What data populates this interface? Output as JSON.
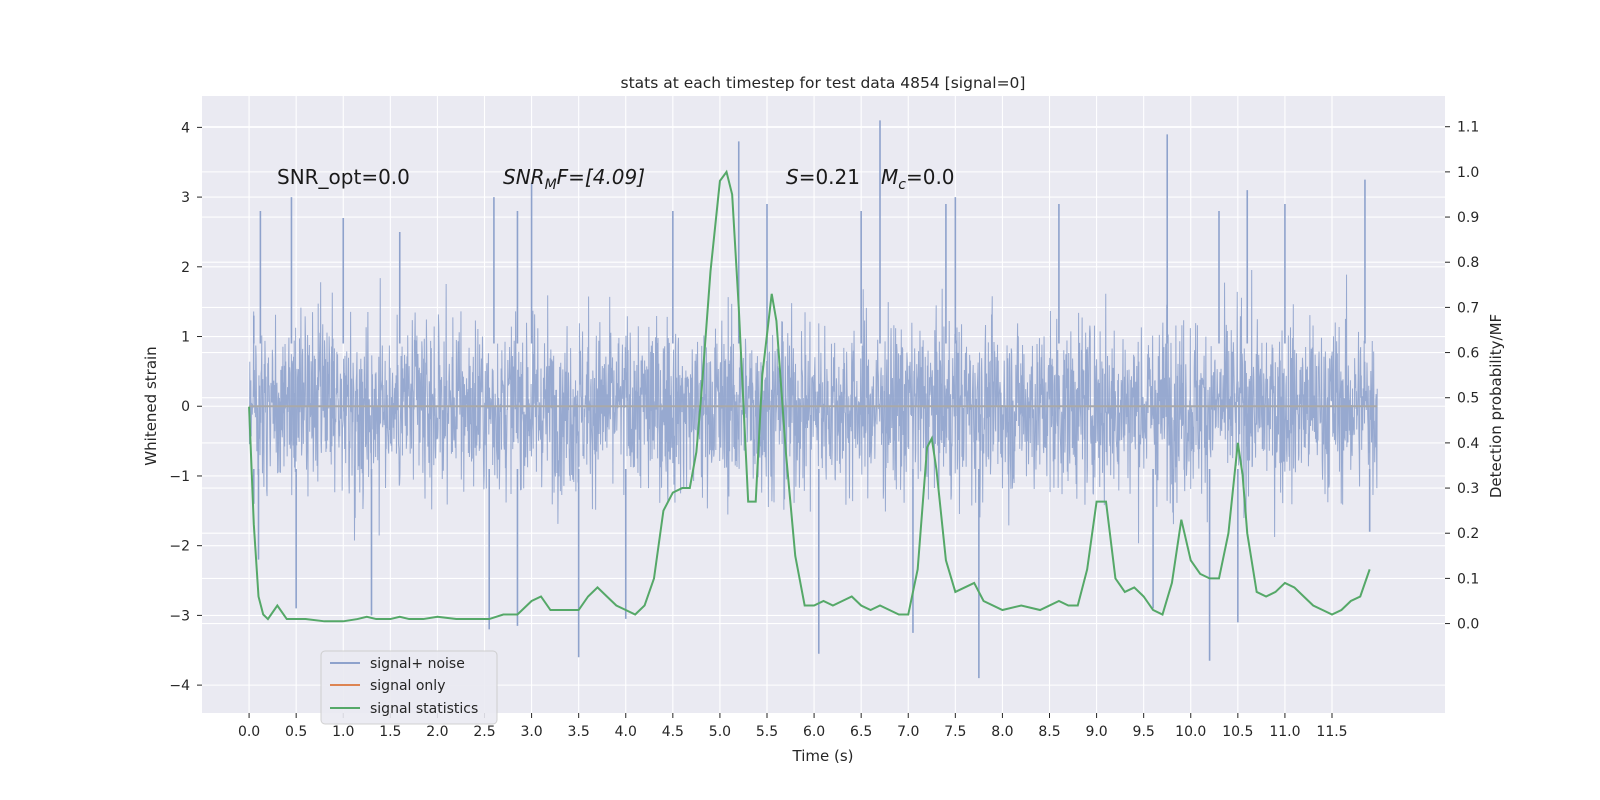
{
  "chart_data": {
    "type": "line",
    "title": "stats at each timestep for test data 4854 [signal=0]",
    "xlabel": "Time (s)",
    "ylabel_left": "Whitened strain",
    "ylabel_right": "Detection probability/MF",
    "xlim": [
      -0.5,
      12.7
    ],
    "ylim_left": [
      -4.4,
      4.45
    ],
    "ylim_right": [
      -0.198,
      1.168
    ],
    "xticks": [
      0.0,
      0.5,
      1.0,
      1.5,
      2.0,
      2.5,
      3.0,
      3.5,
      4.0,
      4.5,
      5.0,
      5.5,
      6.0,
      6.5,
      7.0,
      7.5,
      8.0,
      8.5,
      9.0,
      9.5,
      10.0,
      10.5,
      11.0,
      11.5
    ],
    "xtick_labels": [
      "0.0",
      "0.5",
      "1.0",
      "1.5",
      "2.0",
      "2.5",
      "3.0",
      "3.5",
      "4.0",
      "4.5",
      "5.0",
      "5.5",
      "6.0",
      "6.5",
      "7.0",
      "7.5",
      "8.0",
      "8.5",
      "9.0",
      "9.5",
      "10.0",
      "10.5",
      "11.0",
      "11.5"
    ],
    "yticks_left": [
      -4,
      -3,
      -2,
      -1,
      0,
      1,
      2,
      3,
      4
    ],
    "ytick_labels_left": [
      "−4",
      "−3",
      "−2",
      "−1",
      "0",
      "1",
      "2",
      "3",
      "4"
    ],
    "yticks_right": [
      0.0,
      0.1,
      0.2,
      0.3,
      0.4,
      0.5,
      0.6,
      0.7,
      0.8,
      0.9,
      1.0,
      1.1
    ],
    "ytick_labels_right": [
      "0.0",
      "0.1",
      "0.2",
      "0.3",
      "0.4",
      "0.5",
      "0.6",
      "0.7",
      "0.8",
      "0.9",
      "1.0",
      "1.1"
    ],
    "grid": true,
    "legend_placement": "lower-left",
    "annotations": {
      "snr_opt": "SNR_opt=0.0",
      "snr_mf_sym": "SNR",
      "snr_mf_sub": "M",
      "snr_mf_rest": "F=[4.09]",
      "s_sym": "S",
      "s_val": "=0.21",
      "mc_sym": "M",
      "mc_sub": "c",
      "mc_val": "=0.0"
    },
    "series": [
      {
        "name": "signal+ noise",
        "color": "#8ea2cc",
        "description_values": "dense whitened-strain noise spanning about -1.3 to 1.3 with spikes to about ±3, extremes about 4.1 and -3.9",
        "x_range": [
          0.0,
          11.98
        ],
        "envelope_peaks": [
          [
            0.05,
            1.3
          ],
          [
            0.12,
            2.8
          ],
          [
            0.45,
            3.0
          ],
          [
            1.0,
            2.7
          ],
          [
            1.6,
            2.5
          ],
          [
            2.6,
            3.0
          ],
          [
            2.85,
            2.8
          ],
          [
            3.0,
            3.2
          ],
          [
            4.5,
            2.8
          ],
          [
            5.2,
            3.8
          ],
          [
            5.5,
            2.9
          ],
          [
            6.5,
            2.8
          ],
          [
            6.7,
            4.1
          ],
          [
            7.4,
            2.9
          ],
          [
            7.5,
            3.0
          ],
          [
            8.6,
            2.9
          ],
          [
            9.75,
            3.9
          ],
          [
            10.3,
            2.8
          ],
          [
            10.6,
            3.1
          ],
          [
            11.0,
            2.9
          ],
          [
            11.85,
            3.25
          ]
        ],
        "envelope_troughs": [
          [
            0.05,
            -1.4
          ],
          [
            0.1,
            -2.2
          ],
          [
            0.5,
            -2.9
          ],
          [
            1.3,
            -3.0
          ],
          [
            2.55,
            -3.2
          ],
          [
            2.85,
            -3.15
          ],
          [
            3.5,
            -3.6
          ],
          [
            4.0,
            -3.05
          ],
          [
            6.05,
            -3.55
          ],
          [
            7.05,
            -3.25
          ],
          [
            7.75,
            -3.9
          ],
          [
            9.6,
            -2.9
          ],
          [
            10.2,
            -3.65
          ],
          [
            10.5,
            -3.1
          ],
          [
            11.9,
            -1.8
          ]
        ]
      },
      {
        "name": "signal only",
        "color": "#dd8452",
        "x": [
          0.0,
          11.98
        ],
        "y": [
          0.0,
          0.0
        ]
      },
      {
        "name": "signal statistics",
        "color": "#55a868",
        "axis": "right",
        "x": [
          0.0,
          0.05,
          0.1,
          0.15,
          0.2,
          0.3,
          0.4,
          0.5,
          0.6,
          0.8,
          1.0,
          1.15,
          1.25,
          1.35,
          1.5,
          1.6,
          1.7,
          1.85,
          2.0,
          2.2,
          2.4,
          2.55,
          2.7,
          2.85,
          3.0,
          3.1,
          3.2,
          3.3,
          3.5,
          3.6,
          3.7,
          3.8,
          3.9,
          4.0,
          4.1,
          4.2,
          4.3,
          4.4,
          4.5,
          4.6,
          4.68,
          4.75,
          4.8,
          4.9,
          5.0,
          5.07,
          5.13,
          5.2,
          5.3,
          5.38,
          5.45,
          5.55,
          5.6,
          5.7,
          5.8,
          5.9,
          6.0,
          6.1,
          6.2,
          6.3,
          6.4,
          6.5,
          6.6,
          6.7,
          6.8,
          6.9,
          7.0,
          7.1,
          7.2,
          7.25,
          7.3,
          7.4,
          7.5,
          7.6,
          7.7,
          7.8,
          8.0,
          8.2,
          8.4,
          8.6,
          8.7,
          8.8,
          8.9,
          9.0,
          9.1,
          9.2,
          9.3,
          9.4,
          9.5,
          9.6,
          9.7,
          9.8,
          9.9,
          10.0,
          10.1,
          10.2,
          10.3,
          10.4,
          10.5,
          10.55,
          10.6,
          10.7,
          10.8,
          10.9,
          11.0,
          11.1,
          11.2,
          11.3,
          11.4,
          11.5,
          11.6,
          11.7,
          11.8,
          11.9
        ],
        "y": [
          0.48,
          0.22,
          0.06,
          0.02,
          0.01,
          0.04,
          0.01,
          0.01,
          0.01,
          0.005,
          0.005,
          0.01,
          0.015,
          0.01,
          0.01,
          0.015,
          0.01,
          0.01,
          0.015,
          0.01,
          0.01,
          0.01,
          0.02,
          0.02,
          0.05,
          0.06,
          0.03,
          0.03,
          0.03,
          0.06,
          0.08,
          0.06,
          0.04,
          0.03,
          0.02,
          0.04,
          0.1,
          0.25,
          0.29,
          0.3,
          0.3,
          0.38,
          0.5,
          0.78,
          0.98,
          1.0,
          0.95,
          0.7,
          0.27,
          0.27,
          0.55,
          0.73,
          0.67,
          0.38,
          0.15,
          0.04,
          0.04,
          0.05,
          0.04,
          0.05,
          0.06,
          0.04,
          0.03,
          0.04,
          0.03,
          0.02,
          0.02,
          0.12,
          0.39,
          0.41,
          0.34,
          0.14,
          0.07,
          0.08,
          0.09,
          0.05,
          0.03,
          0.04,
          0.03,
          0.05,
          0.04,
          0.04,
          0.12,
          0.27,
          0.27,
          0.1,
          0.07,
          0.08,
          0.06,
          0.03,
          0.02,
          0.09,
          0.23,
          0.14,
          0.11,
          0.1,
          0.1,
          0.2,
          0.4,
          0.33,
          0.2,
          0.07,
          0.06,
          0.07,
          0.09,
          0.08,
          0.06,
          0.04,
          0.03,
          0.02,
          0.03,
          0.05,
          0.06,
          0.12
        ]
      }
    ]
  }
}
